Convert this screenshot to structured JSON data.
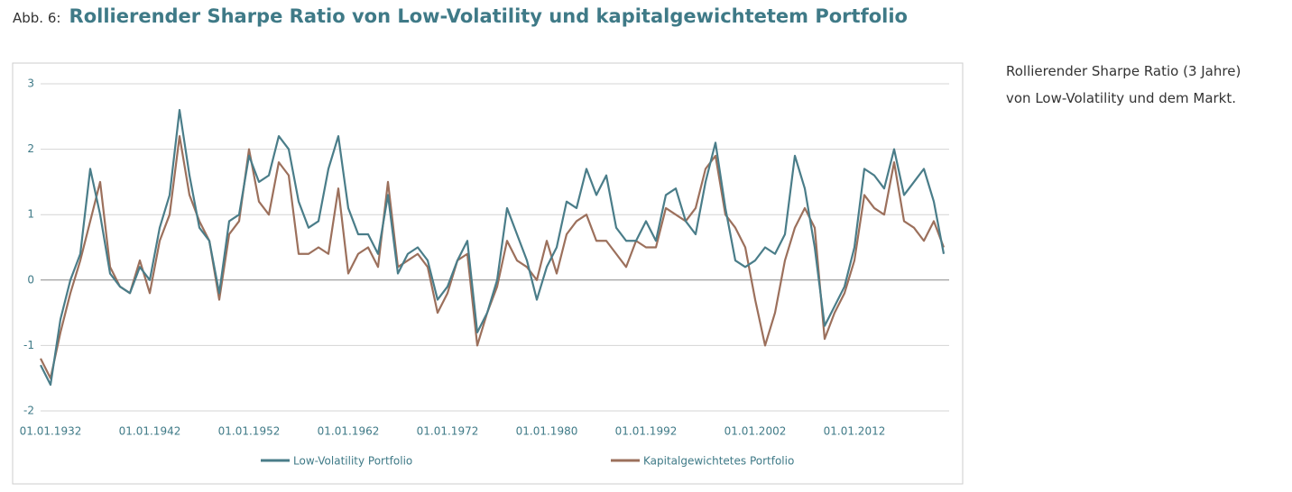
{
  "chart_data": {
    "type": "line",
    "figure_label": "Abb. 6:",
    "title": "Rollierender Sharpe Ratio von Low-Volatility und kapitalgewichtetem Portfolio",
    "categories": [
      null,
      "01.01.1932",
      null,
      null,
      null,
      null,
      null,
      null,
      null,
      null,
      null,
      "01.01.1942",
      null,
      null,
      null,
      null,
      null,
      null,
      null,
      null,
      null,
      "01.01.1952",
      null,
      null,
      null,
      null,
      null,
      null,
      null,
      null,
      null,
      "01.01.1962",
      null,
      null,
      null,
      null,
      null,
      null,
      null,
      null,
      null,
      "01.01.1972",
      null,
      null,
      null,
      null,
      null,
      null,
      null,
      null,
      null,
      "01.01.1980",
      null,
      null,
      null,
      null,
      null,
      null,
      null,
      null,
      null,
      "01.01.1992",
      null,
      null,
      null,
      null,
      null,
      null,
      null,
      null,
      null,
      null,
      "01.01.2002",
      null,
      null,
      null,
      null,
      null,
      null,
      null,
      null,
      null,
      "01.01.2012",
      null,
      null,
      null,
      null,
      null,
      null,
      null,
      null,
      null
    ],
    "series": [
      {
        "name": "Low-Volatility Portfolio",
        "color": "#4a7d89",
        "values": [
          -1.3,
          -1.6,
          -0.6,
          0.0,
          0.4,
          1.7,
          1.0,
          0.1,
          -0.1,
          -0.2,
          0.2,
          0.0,
          0.8,
          1.3,
          2.6,
          1.6,
          0.8,
          0.6,
          -0.2,
          0.9,
          1.0,
          1.9,
          1.5,
          1.6,
          2.2,
          2.0,
          1.2,
          0.8,
          0.9,
          1.7,
          2.2,
          1.1,
          0.7,
          0.7,
          0.4,
          1.3,
          0.1,
          0.4,
          0.5,
          0.3,
          -0.3,
          -0.1,
          0.3,
          0.6,
          -0.8,
          -0.5,
          0.0,
          1.1,
          0.7,
          0.3,
          -0.3,
          0.2,
          0.5,
          1.2,
          1.1,
          1.7,
          1.3,
          1.6,
          0.8,
          0.6,
          0.6,
          0.9,
          0.6,
          1.3,
          1.4,
          0.9,
          0.7,
          1.5,
          2.1,
          1.1,
          0.3,
          0.2,
          0.3,
          0.5,
          0.4,
          0.7,
          1.9,
          1.4,
          0.5,
          -0.7,
          -0.4,
          -0.1,
          0.5,
          1.7,
          1.6,
          1.4,
          2.0,
          1.3,
          1.5,
          1.7,
          1.2,
          0.4
        ]
      },
      {
        "name": "Kapitalgewichtetes Portfolio",
        "color": "#9c705c",
        "values": [
          -1.2,
          -1.5,
          -0.8,
          -0.2,
          0.3,
          0.9,
          1.5,
          0.2,
          -0.1,
          -0.2,
          0.3,
          -0.2,
          0.6,
          1.0,
          2.2,
          1.3,
          0.9,
          0.6,
          -0.3,
          0.7,
          0.9,
          2.0,
          1.2,
          1.0,
          1.8,
          1.6,
          0.4,
          0.4,
          0.5,
          0.4,
          1.4,
          0.1,
          0.4,
          0.5,
          0.2,
          1.5,
          0.2,
          0.3,
          0.4,
          0.2,
          -0.5,
          -0.2,
          0.3,
          0.4,
          -1.0,
          -0.5,
          -0.1,
          0.6,
          0.3,
          0.2,
          0.0,
          0.6,
          0.1,
          0.7,
          0.9,
          1.0,
          0.6,
          0.6,
          0.4,
          0.2,
          0.6,
          0.5,
          0.5,
          1.1,
          1.0,
          0.9,
          1.1,
          1.7,
          1.9,
          1.0,
          0.8,
          0.5,
          -0.3,
          -1.0,
          -0.5,
          0.3,
          0.8,
          1.1,
          0.8,
          -0.9,
          -0.5,
          -0.2,
          0.3,
          1.3,
          1.1,
          1.0,
          1.8,
          0.9,
          0.8,
          0.6,
          0.9,
          0.5
        ]
      }
    ],
    "ylim": [
      -2,
      3
    ],
    "yticks": [
      -2,
      -1,
      0,
      1,
      2,
      3
    ],
    "grid": true
  },
  "side_note": [
    "Rollierender Sharpe Ratio (3 Jahre)",
    "von Low-Volatility und dem Markt."
  ]
}
